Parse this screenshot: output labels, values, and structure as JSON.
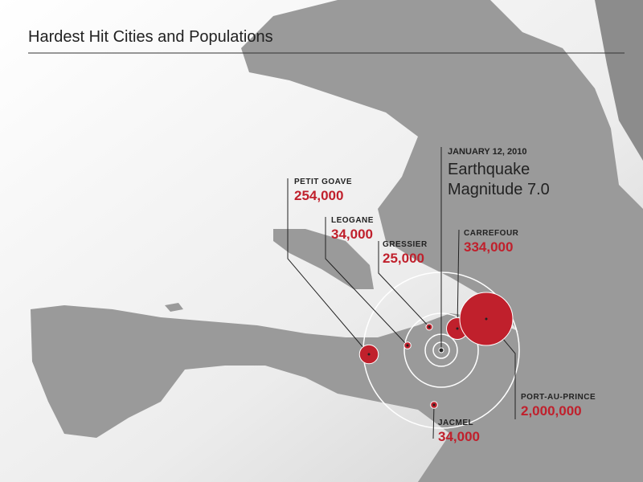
{
  "title": "Hardest Hit Cities and Populations",
  "epicenter": {
    "date": "JANUARY 12, 2010",
    "headline": "Earthquake",
    "magnitude_label": "Magnitude 7.0"
  },
  "cities": [
    {
      "name": "PETIT GOAVE",
      "population": 254000,
      "population_label": "254,000"
    },
    {
      "name": "LEOGANE",
      "population": 34000,
      "population_label": "34,000"
    },
    {
      "name": "GRESSIER",
      "population": 25000,
      "population_label": "25,000"
    },
    {
      "name": "CARREFOUR",
      "population": 334000,
      "population_label": "334,000"
    },
    {
      "name": "PORT-AU-PRINCE",
      "population": 2000000,
      "population_label": "2,000,000"
    },
    {
      "name": "JACMEL",
      "population": 34000,
      "population_label": "34,000"
    }
  ]
}
